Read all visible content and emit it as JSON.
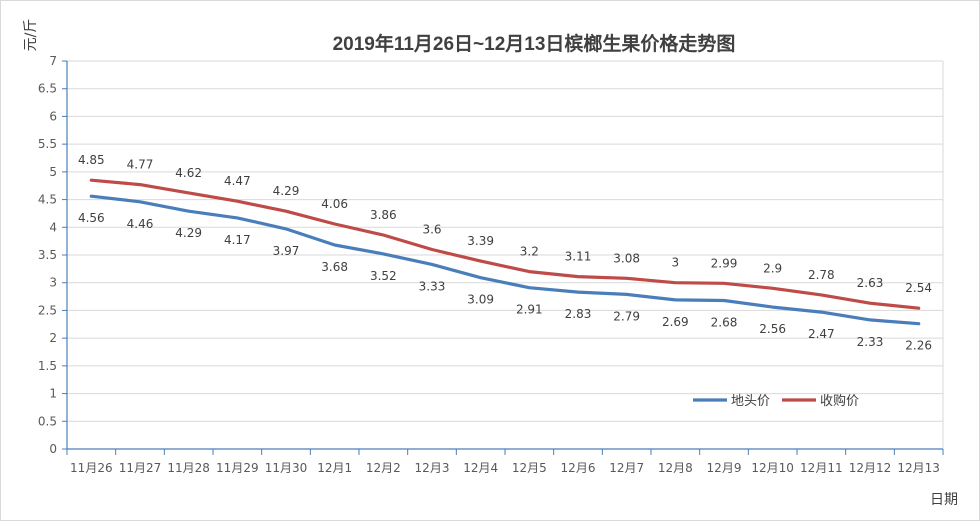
{
  "chart_data": {
    "type": "line",
    "title": "2019年11月26日~12月13日槟榔生果价格走势图",
    "ylabel": "元/斤",
    "xlabel": "日期",
    "ylim": [
      0,
      7
    ],
    "ytick_step": 0.5,
    "yticks": [
      "0",
      "0.5",
      "1",
      "1.5",
      "2",
      "2.5",
      "3",
      "3.5",
      "4",
      "4.5",
      "5",
      "5.5",
      "6",
      "6.5",
      "7"
    ],
    "categories": [
      "11月26",
      "11月27",
      "11月28",
      "11月29",
      "11月30",
      "12月1",
      "12月2",
      "12月3",
      "12月4",
      "12月5",
      "12月6",
      "12月7",
      "12月8",
      "12月9",
      "12月10",
      "12月11",
      "12月12",
      "12月13"
    ],
    "grid": true,
    "legend_position": "bottom-right",
    "series": [
      {
        "name": "地头价",
        "color": "#4a7ebb",
        "label_position": "below",
        "values": [
          4.56,
          4.46,
          4.29,
          4.17,
          3.97,
          3.68,
          3.52,
          3.33,
          3.09,
          2.91,
          2.83,
          2.79,
          2.69,
          2.68,
          2.56,
          2.47,
          2.33,
          2.26
        ],
        "labels": [
          "4.56",
          "4.46",
          "4.29",
          "4.17",
          "3.97",
          "3.68",
          "3.52",
          "3.33",
          "3.09",
          "2.91",
          "2.83",
          "2.79",
          "2.69",
          "2.68",
          "2.56",
          "2.47",
          "2.33",
          "2.26"
        ]
      },
      {
        "name": "收购价",
        "color": "#be4b48",
        "label_position": "above",
        "values": [
          4.85,
          4.77,
          4.62,
          4.47,
          4.29,
          4.06,
          3.86,
          3.6,
          3.39,
          3.2,
          3.11,
          3.08,
          3,
          2.99,
          2.9,
          2.78,
          2.63,
          2.54
        ],
        "labels": [
          "4.85",
          "4.77",
          "4.62",
          "4.47",
          "4.29",
          "4.06",
          "3.86",
          "3.6",
          "3.39",
          "3.2",
          "3.11",
          "3.08",
          "3",
          "2.99",
          "2.9",
          "2.78",
          "2.63",
          "2.54"
        ]
      }
    ],
    "colors": {
      "grid": "#d9d9d9",
      "axis": "#4a7ebb",
      "text": "#404040"
    }
  }
}
